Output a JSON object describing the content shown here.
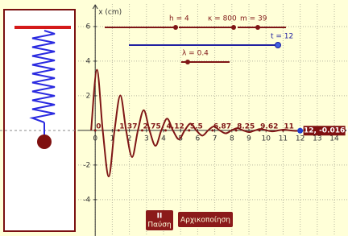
{
  "chart_data": {
    "type": "line",
    "axis_label": "x (cm)",
    "xlim": [
      -1,
      14.8
    ],
    "ylim": [
      -6.1,
      7.3
    ],
    "xticks": [
      0,
      1,
      2,
      3,
      4,
      5,
      6,
      7,
      8,
      9,
      10,
      11,
      12,
      13,
      14
    ],
    "yticks": [
      -4,
      -2,
      2,
      4,
      6
    ],
    "grid": true,
    "color": "#7f1616",
    "x": [
      -0.24,
      0.1,
      0.44,
      0.79,
      1.13,
      1.47,
      1.81,
      2.16,
      2.5,
      2.84,
      3.18,
      3.53,
      3.87,
      4.21,
      4.55,
      4.9,
      5.24,
      5.58,
      5.92,
      6.27,
      6.61,
      6.95,
      7.29,
      7.64,
      7.98,
      8.32,
      8.66,
      9.01,
      9.35,
      9.69,
      10.03,
      10.38,
      10.72,
      11.06,
      11.4,
      11.75,
      12
    ],
    "values": [
      0,
      3.5,
      0,
      -2.66,
      0,
      2.02,
      0,
      -1.54,
      0,
      1.17,
      0,
      -0.89,
      0,
      0.68,
      0,
      -0.51,
      0,
      0.39,
      0,
      -0.3,
      0,
      0.23,
      0,
      -0.17,
      0,
      0.13,
      0,
      -0.1,
      0,
      0.08,
      0,
      -0.06,
      0,
      0.04,
      0,
      -0.03,
      -0.016
    ],
    "markers": [
      0,
      1.37,
      2.75,
      4.12,
      5.5,
      6.87,
      8.25,
      9.62,
      11
    ],
    "point": {
      "x": 12,
      "y": -0.016,
      "label": "(12, -0.016)"
    }
  },
  "sliders": [
    "h = 4",
    "κ = 800",
    "m = 39",
    "t = 12",
    "λ = 0.4"
  ],
  "buttons": {
    "pause_icon": "II",
    "pause": "Παύση",
    "reset": "Αρχικοποίηση"
  }
}
